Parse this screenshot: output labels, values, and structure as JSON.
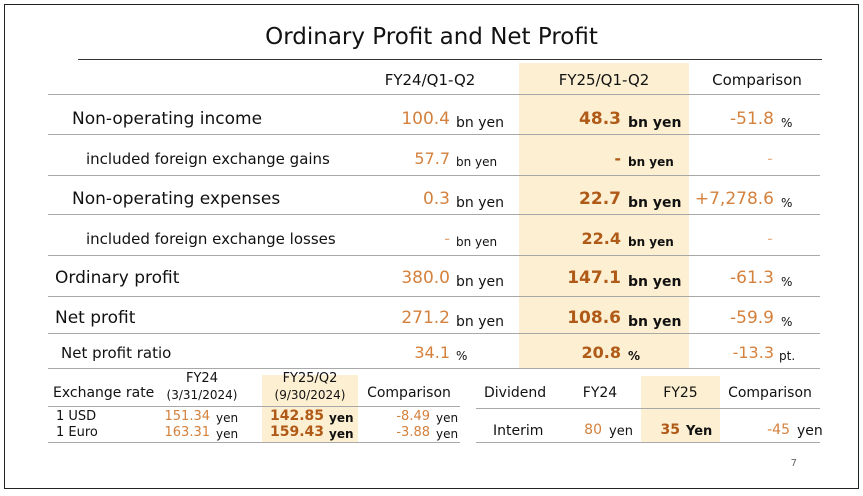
{
  "title": "Ordinary Profit and Net Profit",
  "page_number": "7",
  "main_table": {
    "headers": {
      "prev": "FY24/Q1-Q2",
      "curr": "FY25/Q1-Q2",
      "comparison": "Comparison"
    },
    "rows": [
      {
        "label": "Non-operating income",
        "prev": "100.4",
        "prev_unit": "bn yen",
        "curr": "48.3",
        "curr_unit": "bn yen",
        "cmp": "-51.8",
        "cmp_unit": "%"
      },
      {
        "label": "included foreign exchange gains",
        "prev": "57.7",
        "prev_unit": "bn yen",
        "curr": "-",
        "curr_unit": "bn yen",
        "cmp": "-",
        "cmp_unit": ""
      },
      {
        "label": "Non-operating expenses",
        "prev": "0.3",
        "prev_unit": "bn yen",
        "curr": "22.7",
        "curr_unit": "bn yen",
        "cmp": "+7,278.6",
        "cmp_unit": "%"
      },
      {
        "label": "included foreign exchange losses",
        "prev": "-",
        "prev_unit": "bn yen",
        "curr": "22.4",
        "curr_unit": "bn yen",
        "cmp": "-",
        "cmp_unit": ""
      },
      {
        "label": "Ordinary profit",
        "prev": "380.0",
        "prev_unit": "bn yen",
        "curr": "147.1",
        "curr_unit": "bn yen",
        "cmp": "-61.3",
        "cmp_unit": "%"
      },
      {
        "label": "Net profit",
        "prev": "271.2",
        "prev_unit": "bn yen",
        "curr": "108.6",
        "curr_unit": "bn yen",
        "cmp": "-59.9",
        "cmp_unit": "%"
      },
      {
        "label": "Net profit ratio",
        "prev": "34.1",
        "prev_unit": "%",
        "curr": "20.8",
        "curr_unit": "%",
        "cmp": "-13.3",
        "cmp_unit": "pt."
      }
    ]
  },
  "exchange_table": {
    "label": "Exchange rate",
    "h_prev_1": "FY24",
    "h_prev_2": "(3/31/2024)",
    "h_curr_1": "FY25/Q2",
    "h_curr_2": "(9/30/2024)",
    "h_cmp": "Comparison",
    "rows": [
      {
        "label": "1 USD",
        "prev": "151.34",
        "prev_unit": "yen",
        "curr": "142.85",
        "curr_unit": "yen",
        "cmp": "-8.49",
        "cmp_unit": "yen"
      },
      {
        "label": "1 Euro",
        "prev": "163.31",
        "prev_unit": "yen",
        "curr": "159.43",
        "curr_unit": "yen",
        "cmp": "-3.88",
        "cmp_unit": "yen"
      }
    ]
  },
  "dividend_table": {
    "label": "Dividend",
    "h_prev": "FY24",
    "h_curr": "FY25",
    "h_cmp": "Comparison",
    "rows": [
      {
        "label": "Interim",
        "prev": "80",
        "prev_unit": "yen",
        "curr": "35",
        "curr_unit": "Yen",
        "cmp": "-45",
        "cmp_unit": "yen"
      }
    ]
  },
  "colors": {
    "highlight": "#fdefd1",
    "value_orange": "#d4813d",
    "value_bold": "#b05a18"
  }
}
